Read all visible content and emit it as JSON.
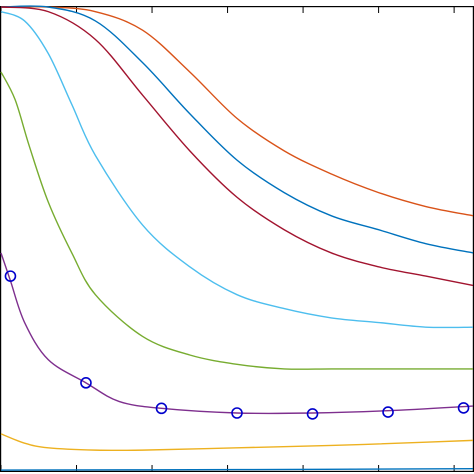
{
  "chart_data": {
    "type": "line",
    "title": "",
    "xlabel": "",
    "ylabel": "",
    "xlim": [
      0,
      1
    ],
    "ylim": [
      0,
      1
    ],
    "x_ticks": [
      0,
      0.16,
      0.32,
      0.48,
      0.64,
      0.8,
      0.96
    ],
    "tick_labels_visible": false,
    "grid": false,
    "legend": "none",
    "series": [
      {
        "color": "#D95319",
        "points": [
          [
            0,
            1.0
          ],
          [
            0.1,
            1.0
          ],
          [
            0.2,
            0.99
          ],
          [
            0.3,
            0.95
          ],
          [
            0.4,
            0.86
          ],
          [
            0.5,
            0.76
          ],
          [
            0.6,
            0.69
          ],
          [
            0.7,
            0.64
          ],
          [
            0.8,
            0.6
          ],
          [
            0.9,
            0.57
          ],
          [
            1.0,
            0.55
          ]
        ]
      },
      {
        "color": "#0072BD",
        "points": [
          [
            0,
            1.0
          ],
          [
            0.1,
            1.0
          ],
          [
            0.2,
            0.97
          ],
          [
            0.3,
            0.88
          ],
          [
            0.4,
            0.77
          ],
          [
            0.5,
            0.67
          ],
          [
            0.6,
            0.6
          ],
          [
            0.7,
            0.55
          ],
          [
            0.8,
            0.52
          ],
          [
            0.9,
            0.49
          ],
          [
            1.0,
            0.47
          ]
        ]
      },
      {
        "color": "#A2142F",
        "points": [
          [
            0,
            1.0
          ],
          [
            0.1,
            0.99
          ],
          [
            0.2,
            0.93
          ],
          [
            0.3,
            0.81
          ],
          [
            0.4,
            0.69
          ],
          [
            0.5,
            0.59
          ],
          [
            0.6,
            0.52
          ],
          [
            0.7,
            0.47
          ],
          [
            0.8,
            0.44
          ],
          [
            0.9,
            0.42
          ],
          [
            1.0,
            0.4
          ]
        ]
      },
      {
        "color": "#4DBEEE",
        "points": [
          [
            0,
            0.99
          ],
          [
            0.05,
            0.97
          ],
          [
            0.1,
            0.9
          ],
          [
            0.15,
            0.79
          ],
          [
            0.2,
            0.68
          ],
          [
            0.3,
            0.53
          ],
          [
            0.4,
            0.44
          ],
          [
            0.5,
            0.38
          ],
          [
            0.6,
            0.35
          ],
          [
            0.7,
            0.33
          ],
          [
            0.8,
            0.32
          ],
          [
            0.9,
            0.31
          ],
          [
            1.0,
            0.31
          ]
        ]
      },
      {
        "color": "#77AC30",
        "points": [
          [
            0,
            0.86
          ],
          [
            0.03,
            0.8
          ],
          [
            0.06,
            0.7
          ],
          [
            0.1,
            0.58
          ],
          [
            0.15,
            0.47
          ],
          [
            0.2,
            0.38
          ],
          [
            0.3,
            0.29
          ],
          [
            0.4,
            0.25
          ],
          [
            0.5,
            0.23
          ],
          [
            0.6,
            0.22
          ],
          [
            0.7,
            0.22
          ],
          [
            0.8,
            0.22
          ],
          [
            0.9,
            0.22
          ],
          [
            1.0,
            0.22
          ]
        ]
      },
      {
        "color": "#7E2F8E",
        "points": [
          [
            0,
            0.47
          ],
          [
            0.02,
            0.41
          ],
          [
            0.05,
            0.32
          ],
          [
            0.1,
            0.24
          ],
          [
            0.18,
            0.19
          ],
          [
            0.25,
            0.15
          ],
          [
            0.34,
            0.135
          ],
          [
            0.5,
            0.125
          ],
          [
            0.66,
            0.125
          ],
          [
            0.82,
            0.13
          ],
          [
            1.0,
            0.14
          ]
        ]
      },
      {
        "color": "#EDB120",
        "points": [
          [
            0,
            0.08
          ],
          [
            0.05,
            0.06
          ],
          [
            0.1,
            0.05
          ],
          [
            0.2,
            0.045
          ],
          [
            0.3,
            0.045
          ],
          [
            0.5,
            0.05
          ],
          [
            0.7,
            0.055
          ],
          [
            0.9,
            0.062
          ],
          [
            1.0,
            0.066
          ]
        ]
      },
      {
        "color": "#0072BD",
        "points": [
          [
            0,
            0.002
          ],
          [
            0.5,
            0.003
          ],
          [
            1.0,
            0.005
          ]
        ]
      }
    ],
    "markers": {
      "color": "#0000CC",
      "shape": "circle",
      "points": [
        [
          0.02,
          0.42
        ],
        [
          0.18,
          0.19
        ],
        [
          0.34,
          0.135
        ],
        [
          0.5,
          0.125
        ],
        [
          0.66,
          0.123
        ],
        [
          0.82,
          0.127
        ],
        [
          0.98,
          0.136
        ]
      ]
    }
  }
}
